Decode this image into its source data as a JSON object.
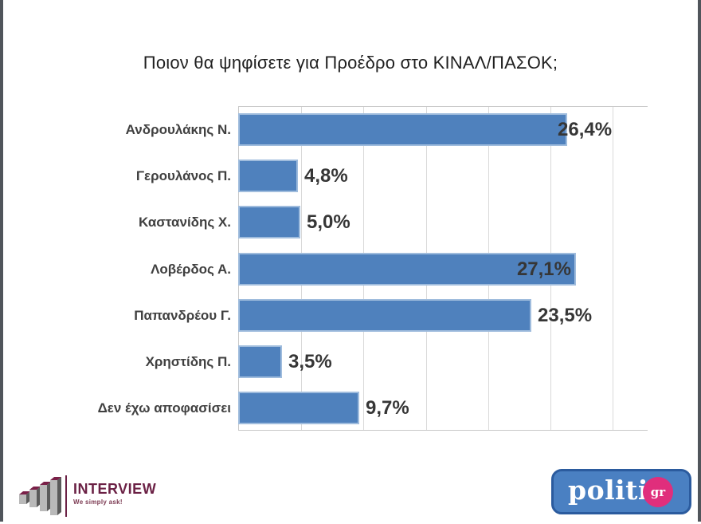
{
  "page": {
    "title": "Ποιον θα ψηφίσετε για Προέδρο στο ΚΙΝΑΛ/ΠΑΣΟΚ;"
  },
  "chart_data": {
    "type": "bar",
    "orientation": "horizontal",
    "title": "Ποιον θα ψηφίσετε για Προέδρο στο ΚΙΝΑΛ/ΠΑΣΟΚ;",
    "categories": [
      "Ανδρουλάκης Ν.",
      "Γερουλάνος Π.",
      "Καστανίδης Χ.",
      "Λοβέρδος Α.",
      "Παπανδρέου Γ.",
      "Χρηστίδης Π.",
      "Δεν έχω αποφασίσει"
    ],
    "values": [
      26.4,
      4.8,
      5.0,
      27.1,
      23.5,
      3.5,
      9.7
    ],
    "value_labels": [
      "26,4%",
      "4,8%",
      "5,0%",
      "27,1%",
      "23,5%",
      "3,5%",
      "9,7%"
    ],
    "label_positions": [
      "overlap-end",
      "outside",
      "outside",
      "inside-end",
      "outside",
      "outside",
      "outside"
    ],
    "unit": "%",
    "decimal_separator": ",",
    "xlim": [
      0,
      32.8
    ],
    "gridline_interval_pct": 5,
    "grid": true,
    "legend": false,
    "bar_color": "#4F81BD",
    "bar_border_color": "#9FBCDD",
    "gridline_color": "#D9D9D9"
  },
  "footer": {
    "interview": {
      "name": "INTERVIEW",
      "tagline": "We simply ask!",
      "brand_color": "#6B2145"
    },
    "politic": {
      "text": "politic",
      "suffix": "gr",
      "bg_color": "#4A80C2",
      "border_color": "#2B5B9E",
      "badge_color": "#E02E7C"
    }
  }
}
